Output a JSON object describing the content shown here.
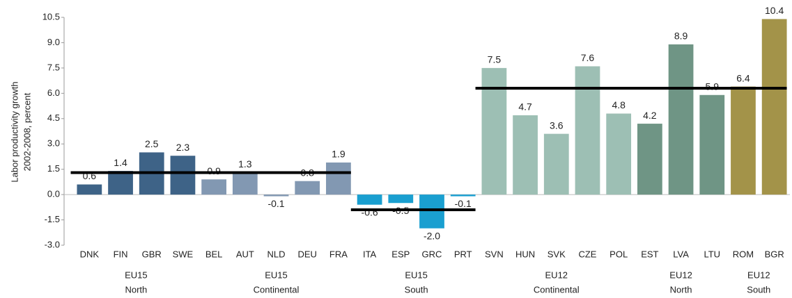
{
  "chart_data": {
    "type": "bar",
    "y_label": [
      "Labor productivity growth",
      "2002-2008, percent"
    ],
    "categories": [
      "DNK",
      "FIN",
      "GBR",
      "SWE",
      "BEL",
      "AUT",
      "NLD",
      "DEU",
      "FRA",
      "ITA",
      "ESP",
      "GRC",
      "PRT",
      "SVN",
      "HUN",
      "SVK",
      "CZE",
      "POL",
      "EST",
      "LVA",
      "LTU",
      "ROM",
      "BGR"
    ],
    "values": [
      0.6,
      1.4,
      2.5,
      2.3,
      0.9,
      1.3,
      -0.1,
      0.8,
      1.9,
      -0.6,
      -0.5,
      -2.0,
      -0.1,
      7.5,
      4.7,
      3.6,
      7.6,
      4.8,
      4.2,
      8.9,
      5.9,
      6.4,
      10.4
    ],
    "value_labels": [
      "0.6",
      "1.4",
      "2.5",
      "2.3",
      "0.9",
      "1.3",
      "-0.1",
      "0.8",
      "1.9",
      "-0.6",
      "-0.5",
      "-2.0",
      "-0.1",
      "7.5",
      "4.7",
      "3.6",
      "7.6",
      "4.8",
      "4.2",
      "8.9",
      "5.9",
      "6.4",
      "10.4"
    ],
    "colors": [
      "#3e6387",
      "#3e6387",
      "#3e6387",
      "#3e6387",
      "#8298b2",
      "#8298b2",
      "#8298b2",
      "#8298b2",
      "#8298b2",
      "#1a9fd0",
      "#1a9fd0",
      "#1a9fd0",
      "#1a9fd0",
      "#9dbfb4",
      "#9dbfb4",
      "#9dbfb4",
      "#9dbfb4",
      "#9dbfb4",
      "#6f9585",
      "#6f9585",
      "#6f9585",
      "#a39349",
      "#a39349"
    ],
    "groups": [
      {
        "label": [
          "EU15",
          "North"
        ],
        "count": 4
      },
      {
        "label": [
          "EU15",
          "Continental"
        ],
        "count": 5
      },
      {
        "label": [
          "EU15",
          "South"
        ],
        "count": 4
      },
      {
        "label": [
          "EU12",
          "Continental"
        ],
        "count": 5
      },
      {
        "label": [
          "EU12",
          "North"
        ],
        "count": 3
      },
      {
        "label": [
          "EU12",
          "South"
        ],
        "count": 2
      }
    ],
    "reference_lines": [
      {
        "value": 1.3,
        "span": [
          "DNK",
          "FRA"
        ]
      },
      {
        "value": -0.9,
        "span": [
          "ITA",
          "PRT"
        ]
      },
      {
        "value": 6.3,
        "span": [
          "SVN",
          "BGR"
        ]
      }
    ],
    "ylim": [
      -3.0,
      10.5
    ],
    "yticks": [
      {
        "value": -3,
        "label": "-3.0"
      },
      -1.5,
      {
        "value": 0,
        "label": "0.0"
      },
      1.5,
      {
        "value": 3,
        "label": "3.0"
      },
      4.5,
      {
        "value": 6,
        "label": "6.0"
      },
      7.5,
      {
        "value": 9,
        "label": "9.0"
      },
      10.5
    ],
    "grid": false
  }
}
